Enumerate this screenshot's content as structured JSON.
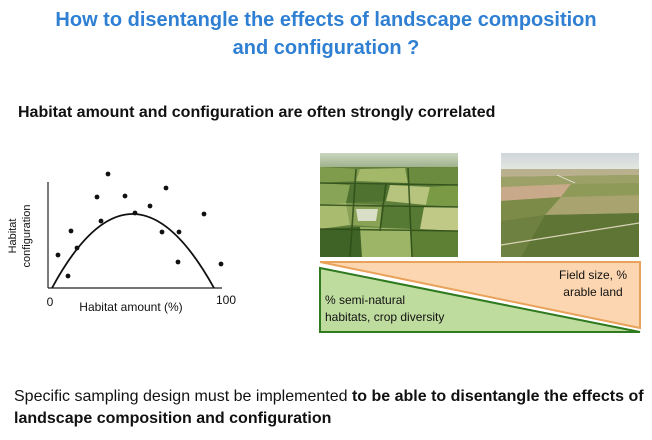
{
  "title_line1": "How to disentangle the effects of landscape composition",
  "title_line2": "and configuration ?",
  "subtitle": "Habitat amount and configuration are often strongly correlated",
  "scatter": {
    "ylabel_line1": "Habitat",
    "ylabel_line2": "configuration",
    "xlabel": "Habitat amount (%)",
    "x_min_label": "0",
    "x_max_label": "100"
  },
  "triangles": {
    "upper_label_line1": "Field size, %",
    "upper_label_line2": "arable land",
    "lower_label_line1": "% semi-natural",
    "lower_label_line2": "habitats, crop diversity",
    "upper_color": "#fbd6b0",
    "upper_border": "#e9a25a",
    "lower_color": "#bfdc9f",
    "lower_border": "#2f7a1f"
  },
  "bottom_text_normal": "Specific sampling design must be implemented ",
  "bottom_text_bold": "to be able to disentangle the effects of landscape composition and configuration",
  "colors": {
    "title": "#2f7fd3"
  }
}
